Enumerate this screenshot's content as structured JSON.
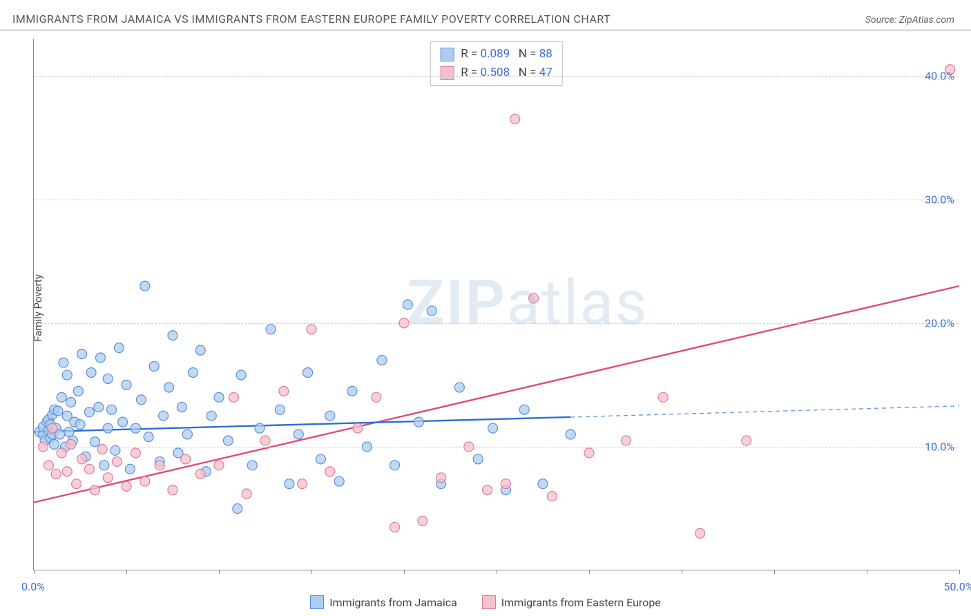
{
  "title": "IMMIGRANTS FROM JAMAICA VS IMMIGRANTS FROM EASTERN EUROPE FAMILY POVERTY CORRELATION CHART",
  "source_label": "Source: ",
  "source_name": "ZipAtlas.com",
  "y_axis_label": "Family Poverty",
  "watermark": {
    "part1": "ZIP",
    "part2": "atlas"
  },
  "chart": {
    "type": "scatter",
    "xlim": [
      0,
      50
    ],
    "ylim": [
      0,
      43
    ],
    "y_ticks": [
      10,
      20,
      30,
      40
    ],
    "y_tick_labels": [
      "10.0%",
      "20.0%",
      "30.0%",
      "40.0%"
    ],
    "x_tick_positions": [
      0,
      5,
      10,
      15,
      20,
      25,
      30,
      35,
      40,
      45,
      50
    ],
    "x_tick_labels": {
      "0": "0.0%",
      "50": "50.0%"
    },
    "grid_color": "#cfcfcf",
    "axis_color": "#888888",
    "background_color": "#ffffff",
    "marker_radius": 7,
    "marker_stroke_width": 1.2,
    "series": [
      {
        "name": "Immigrants from Jamaica",
        "fill": "#aeccf0",
        "stroke": "#5a90d8",
        "r_value": "0.089",
        "n_value": "88",
        "trend": {
          "x1": 0,
          "y1": 11.2,
          "x2": 29,
          "y2": 12.4,
          "x3": 50,
          "y3": 13.3,
          "solid_color": "#2e6fd1",
          "dash_color": "#6a9be0",
          "width": 2.4
        },
        "points": [
          [
            0.3,
            11.2
          ],
          [
            0.5,
            11.0
          ],
          [
            0.5,
            11.6
          ],
          [
            0.6,
            10.5
          ],
          [
            0.7,
            12.0
          ],
          [
            0.8,
            11.3
          ],
          [
            0.8,
            12.2
          ],
          [
            0.9,
            10.7
          ],
          [
            0.9,
            11.8
          ],
          [
            1.0,
            11.0
          ],
          [
            1.0,
            12.6
          ],
          [
            1.1,
            10.2
          ],
          [
            1.1,
            13.0
          ],
          [
            1.2,
            11.5
          ],
          [
            1.3,
            12.9
          ],
          [
            1.4,
            11.0
          ],
          [
            1.5,
            14.0
          ],
          [
            1.6,
            16.8
          ],
          [
            1.7,
            10.0
          ],
          [
            1.8,
            12.5
          ],
          [
            1.8,
            15.8
          ],
          [
            1.9,
            11.2
          ],
          [
            2.0,
            13.6
          ],
          [
            2.1,
            10.5
          ],
          [
            2.2,
            12.0
          ],
          [
            2.4,
            14.5
          ],
          [
            2.5,
            11.8
          ],
          [
            2.6,
            17.5
          ],
          [
            2.8,
            9.2
          ],
          [
            3.0,
            12.8
          ],
          [
            3.1,
            16.0
          ],
          [
            3.3,
            10.4
          ],
          [
            3.5,
            13.2
          ],
          [
            3.6,
            17.2
          ],
          [
            3.8,
            8.5
          ],
          [
            4.0,
            11.5
          ],
          [
            4.0,
            15.5
          ],
          [
            4.2,
            13.0
          ],
          [
            4.4,
            9.7
          ],
          [
            4.6,
            18.0
          ],
          [
            4.8,
            12.0
          ],
          [
            5.0,
            15.0
          ],
          [
            5.2,
            8.2
          ],
          [
            5.5,
            11.5
          ],
          [
            5.8,
            13.8
          ],
          [
            6.0,
            23.0
          ],
          [
            6.2,
            10.8
          ],
          [
            6.5,
            16.5
          ],
          [
            6.8,
            8.8
          ],
          [
            7.0,
            12.5
          ],
          [
            7.3,
            14.8
          ],
          [
            7.5,
            19.0
          ],
          [
            7.8,
            9.5
          ],
          [
            8.0,
            13.2
          ],
          [
            8.3,
            11.0
          ],
          [
            8.6,
            16.0
          ],
          [
            9.0,
            17.8
          ],
          [
            9.3,
            8.0
          ],
          [
            9.6,
            12.5
          ],
          [
            10.0,
            14.0
          ],
          [
            10.5,
            10.5
          ],
          [
            11.0,
            5.0
          ],
          [
            11.2,
            15.8
          ],
          [
            11.8,
            8.5
          ],
          [
            12.2,
            11.5
          ],
          [
            12.8,
            19.5
          ],
          [
            13.3,
            13.0
          ],
          [
            13.8,
            7.0
          ],
          [
            14.3,
            11.0
          ],
          [
            14.8,
            16.0
          ],
          [
            15.5,
            9.0
          ],
          [
            16.0,
            12.5
          ],
          [
            16.5,
            7.2
          ],
          [
            17.2,
            14.5
          ],
          [
            18.0,
            10.0
          ],
          [
            18.8,
            17.0
          ],
          [
            19.5,
            8.5
          ],
          [
            20.2,
            21.5
          ],
          [
            20.8,
            12.0
          ],
          [
            21.5,
            21.0
          ],
          [
            22.0,
            7.0
          ],
          [
            23.0,
            14.8
          ],
          [
            24.0,
            9.0
          ],
          [
            24.8,
            11.5
          ],
          [
            25.5,
            6.5
          ],
          [
            26.5,
            13.0
          ],
          [
            27.5,
            7.0
          ],
          [
            29.0,
            11.0
          ]
        ]
      },
      {
        "name": "Immigrants from Eastern Europe",
        "fill": "#f4c0cd",
        "stroke": "#e07a9a",
        "r_value": "0.508",
        "n_value": "47",
        "trend": {
          "x1": 0,
          "y1": 5.5,
          "x2": 50,
          "y2": 23.0,
          "solid_color": "#e04a78",
          "width": 2.4
        },
        "points": [
          [
            0.5,
            10.0
          ],
          [
            0.8,
            8.5
          ],
          [
            1.0,
            11.5
          ],
          [
            1.2,
            7.8
          ],
          [
            1.5,
            9.5
          ],
          [
            1.8,
            8.0
          ],
          [
            2.0,
            10.2
          ],
          [
            2.3,
            7.0
          ],
          [
            2.6,
            9.0
          ],
          [
            3.0,
            8.2
          ],
          [
            3.3,
            6.5
          ],
          [
            3.7,
            9.8
          ],
          [
            4.0,
            7.5
          ],
          [
            4.5,
            8.8
          ],
          [
            5.0,
            6.8
          ],
          [
            5.5,
            9.5
          ],
          [
            6.0,
            7.2
          ],
          [
            6.8,
            8.5
          ],
          [
            7.5,
            6.5
          ],
          [
            8.2,
            9.0
          ],
          [
            9.0,
            7.8
          ],
          [
            10.0,
            8.5
          ],
          [
            10.8,
            14.0
          ],
          [
            11.5,
            6.2
          ],
          [
            12.5,
            10.5
          ],
          [
            13.5,
            14.5
          ],
          [
            14.5,
            7.0
          ],
          [
            15.0,
            19.5
          ],
          [
            16.0,
            8.0
          ],
          [
            17.5,
            11.5
          ],
          [
            18.5,
            14.0
          ],
          [
            19.5,
            3.5
          ],
          [
            20.0,
            20.0
          ],
          [
            21.0,
            4.0
          ],
          [
            22.0,
            7.5
          ],
          [
            23.5,
            10.0
          ],
          [
            24.5,
            6.5
          ],
          [
            25.5,
            7.0
          ],
          [
            26.0,
            36.5
          ],
          [
            27.0,
            22.0
          ],
          [
            28.0,
            6.0
          ],
          [
            30.0,
            9.5
          ],
          [
            32.0,
            10.5
          ],
          [
            34.0,
            14.0
          ],
          [
            36.0,
            3.0
          ],
          [
            38.5,
            10.5
          ],
          [
            49.5,
            40.5
          ]
        ]
      }
    ]
  },
  "legend_bottom": [
    {
      "label": "Immigrants from Jamaica",
      "fill": "#aeccf0",
      "stroke": "#5a90d8"
    },
    {
      "label": "Immigrants from Eastern Europe",
      "fill": "#f4c0cd",
      "stroke": "#e07a9a"
    }
  ]
}
